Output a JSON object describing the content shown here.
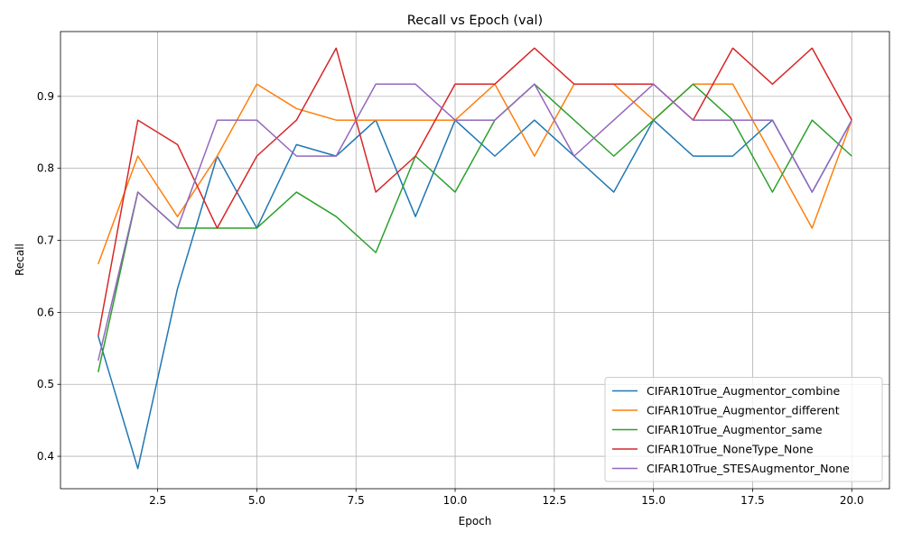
{
  "chart_data": {
    "type": "line",
    "title": "Recall vs Epoch (val)",
    "xlabel": "Epoch",
    "ylabel": "Recall",
    "xlim": [
      0.05,
      20.95
    ],
    "ylim": [
      0.355,
      0.99
    ],
    "xticks": [
      2.5,
      5.0,
      7.5,
      10.0,
      12.5,
      15.0,
      17.5,
      20.0
    ],
    "xtick_labels": [
      "2.5",
      "5.0",
      "7.5",
      "10.0",
      "12.5",
      "15.0",
      "17.5",
      "20.0"
    ],
    "yticks": [
      0.4,
      0.5,
      0.6,
      0.7,
      0.8,
      0.9
    ],
    "ytick_labels": [
      "0.4",
      "0.5",
      "0.6",
      "0.7",
      "0.8",
      "0.9"
    ],
    "grid": true,
    "legend_position": "lower-right",
    "x": [
      1,
      2,
      3,
      4,
      5,
      6,
      7,
      8,
      9,
      10,
      11,
      12,
      13,
      14,
      15,
      16,
      17,
      18,
      19,
      20
    ],
    "series": [
      {
        "name": "CIFAR10True_Augmentor_combine",
        "color": "#1f77b4",
        "values": [
          0.567,
          0.383,
          0.633,
          0.817,
          0.717,
          0.833,
          0.817,
          0.867,
          0.733,
          0.867,
          0.817,
          0.867,
          0.817,
          0.767,
          0.867,
          0.817,
          0.817,
          0.867,
          0.767,
          0.867
        ]
      },
      {
        "name": "CIFAR10True_Augmentor_different",
        "color": "#ff7f0e",
        "values": [
          0.667,
          0.817,
          0.733,
          0.817,
          0.917,
          0.883,
          0.867,
          0.867,
          0.867,
          0.867,
          0.917,
          0.817,
          0.917,
          0.917,
          0.867,
          0.917,
          0.917,
          0.817,
          0.717,
          0.867
        ]
      },
      {
        "name": "CIFAR10True_Augmentor_same",
        "color": "#2ca02c",
        "values": [
          0.517,
          0.767,
          0.717,
          0.717,
          0.717,
          0.767,
          0.733,
          0.683,
          0.817,
          0.767,
          0.867,
          0.917,
          0.867,
          0.817,
          0.867,
          0.917,
          0.867,
          0.767,
          0.867,
          0.817
        ]
      },
      {
        "name": "CIFAR10True_NoneType_None",
        "color": "#d62728",
        "values": [
          0.567,
          0.867,
          0.833,
          0.717,
          0.817,
          0.867,
          0.967,
          0.767,
          0.817,
          0.917,
          0.917,
          0.967,
          0.917,
          0.917,
          0.917,
          0.867,
          0.967,
          0.917,
          0.967,
          0.867
        ]
      },
      {
        "name": "CIFAR10True_STESAugmentor_None",
        "color": "#9467bd",
        "values": [
          0.533,
          0.767,
          0.717,
          0.867,
          0.867,
          0.817,
          0.817,
          0.917,
          0.917,
          0.867,
          0.867,
          0.917,
          0.817,
          0.867,
          0.917,
          0.867,
          0.867,
          0.867,
          0.767,
          0.867
        ]
      }
    ]
  }
}
